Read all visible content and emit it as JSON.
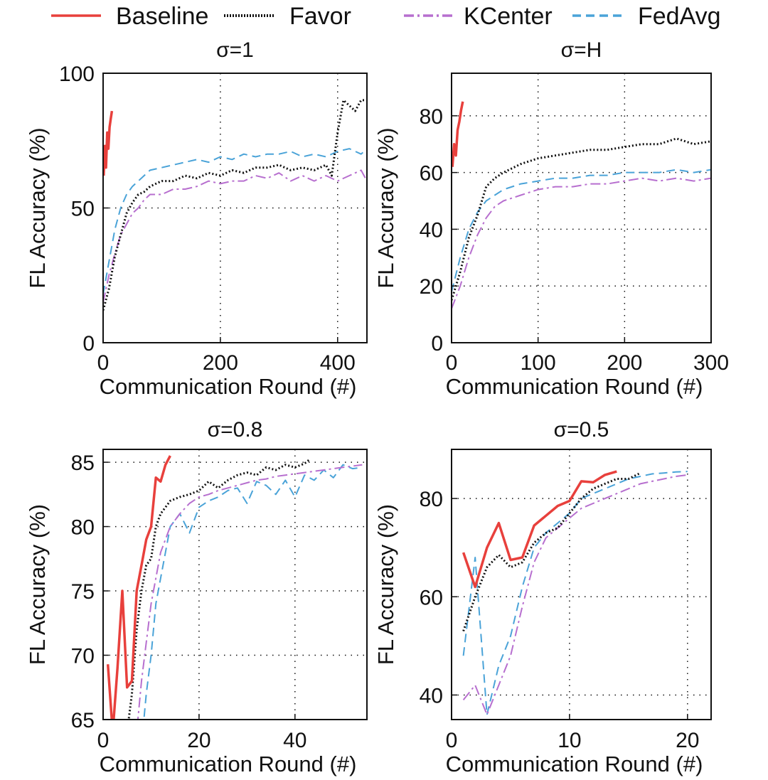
{
  "legend": {
    "entries": [
      {
        "name": "Baseline",
        "color": "#e8403c",
        "style": "solid"
      },
      {
        "name": "Favor",
        "color": "#111111",
        "style": "dotted"
      },
      {
        "name": "KCenter",
        "color": "#b76fcf",
        "style": "dashdot"
      },
      {
        "name": "FedAvg",
        "color": "#4aa3d8",
        "style": "dashed"
      }
    ]
  },
  "chart_data": [
    {
      "type": "line",
      "title": "σ=1",
      "xlabel": "Communication Round (#)",
      "ylabel": "FL Accuracy (%)",
      "xlim": [
        0,
        450
      ],
      "ylim": [
        0,
        100
      ],
      "xticks": [
        0,
        200,
        400
      ],
      "yticks": [
        0,
        50,
        100
      ],
      "xgrid": [
        200,
        400
      ],
      "ygrid": [
        50
      ],
      "series": [
        {
          "name": "Baseline",
          "x": [
            1,
            3,
            5,
            7,
            9,
            11,
            13,
            15
          ],
          "y": [
            62,
            73,
            65,
            78,
            72,
            80,
            83,
            86
          ]
        },
        {
          "name": "Favor",
          "x": [
            0,
            10,
            20,
            30,
            40,
            50,
            60,
            70,
            80,
            100,
            120,
            140,
            160,
            180,
            200,
            220,
            240,
            260,
            280,
            300,
            320,
            340,
            360,
            380,
            390,
            400,
            410,
            420,
            430,
            440,
            450
          ],
          "y": [
            12,
            20,
            32,
            40,
            48,
            52,
            55,
            56,
            58,
            60,
            60,
            62,
            61,
            63,
            62,
            64,
            63,
            65,
            65,
            66,
            64,
            65,
            64,
            66,
            62,
            78,
            90,
            88,
            86,
            90,
            90
          ]
        },
        {
          "name": "KCenter",
          "x": [
            0,
            10,
            20,
            30,
            40,
            50,
            60,
            70,
            80,
            100,
            120,
            140,
            160,
            180,
            200,
            220,
            240,
            260,
            280,
            300,
            320,
            340,
            360,
            380,
            400,
            420,
            440,
            450
          ],
          "y": [
            15,
            25,
            33,
            40,
            44,
            48,
            50,
            53,
            55,
            55,
            57,
            57,
            58,
            60,
            59,
            60,
            60,
            62,
            61,
            63,
            60,
            62,
            60,
            62,
            60,
            62,
            64,
            60
          ]
        },
        {
          "name": "FedAvg",
          "x": [
            0,
            10,
            20,
            30,
            40,
            50,
            60,
            70,
            80,
            100,
            120,
            140,
            160,
            180,
            200,
            220,
            240,
            260,
            280,
            300,
            320,
            340,
            360,
            380,
            400,
            420,
            440,
            450
          ],
          "y": [
            18,
            30,
            42,
            50,
            55,
            58,
            60,
            62,
            64,
            65,
            66,
            67,
            68,
            67,
            69,
            68,
            70,
            69,
            70,
            70,
            71,
            69,
            70,
            69,
            71,
            72,
            70,
            72
          ]
        }
      ]
    },
    {
      "type": "line",
      "title": "σ=H",
      "xlabel": "Communication Round (#)",
      "ylabel": "FL Accuracy (%)",
      "xlim": [
        0,
        300
      ],
      "ylim": [
        0,
        95
      ],
      "xticks": [
        0,
        100,
        200,
        300
      ],
      "yticks": [
        0,
        20,
        40,
        60,
        80
      ],
      "xgrid": [
        100,
        200
      ],
      "ygrid": [
        20,
        40,
        60,
        80
      ],
      "series": [
        {
          "name": "Baseline",
          "x": [
            1,
            3,
            5,
            7,
            9,
            11,
            13
          ],
          "y": [
            62,
            70,
            66,
            75,
            78,
            82,
            85
          ]
        },
        {
          "name": "Favor",
          "x": [
            0,
            10,
            20,
            30,
            40,
            50,
            60,
            80,
            100,
            120,
            140,
            160,
            180,
            200,
            220,
            240,
            260,
            280,
            300
          ],
          "y": [
            15,
            25,
            37,
            45,
            55,
            58,
            60,
            63,
            65,
            66,
            67,
            68,
            68,
            69,
            70,
            70,
            72,
            70,
            71
          ]
        },
        {
          "name": "KCenter",
          "x": [
            0,
            10,
            20,
            30,
            40,
            50,
            60,
            80,
            100,
            120,
            140,
            160,
            180,
            200,
            220,
            240,
            260,
            280,
            300
          ],
          "y": [
            12,
            20,
            30,
            38,
            44,
            48,
            50,
            52,
            54,
            55,
            55,
            56,
            56,
            57,
            58,
            57,
            58,
            57,
            58
          ]
        },
        {
          "name": "FedAvg",
          "x": [
            0,
            10,
            20,
            30,
            40,
            50,
            60,
            80,
            100,
            120,
            140,
            160,
            180,
            200,
            220,
            240,
            260,
            280,
            300
          ],
          "y": [
            18,
            30,
            40,
            46,
            50,
            52,
            54,
            56,
            57,
            58,
            58,
            59,
            59,
            60,
            60,
            60,
            61,
            60,
            61
          ]
        }
      ]
    },
    {
      "type": "line",
      "title": "σ=0.8",
      "xlabel": "Communication Round (#)",
      "ylabel": "FL Accuracy (%)",
      "xlim": [
        0,
        55
      ],
      "ylim": [
        65,
        86
      ],
      "xticks": [
        0,
        20,
        40
      ],
      "yticks": [
        65,
        70,
        75,
        80,
        85
      ],
      "xgrid": [
        20,
        40
      ],
      "ygrid": [
        70,
        75,
        80,
        85
      ],
      "series": [
        {
          "name": "Baseline",
          "x": [
            1,
            2,
            3,
            4,
            5,
            6,
            7,
            8,
            9,
            10,
            11,
            12,
            13,
            14
          ],
          "y": [
            69.3,
            64,
            69,
            75,
            67.5,
            68,
            75,
            77,
            79,
            80,
            83.8,
            83.5,
            84.8,
            85.5
          ]
        },
        {
          "name": "Favor",
          "x": [
            5,
            6,
            7,
            8,
            9,
            10,
            11,
            12,
            14,
            16,
            18,
            20,
            22,
            24,
            26,
            28,
            30,
            32,
            34,
            36,
            38,
            40,
            42,
            43
          ],
          "y": [
            64,
            67,
            72,
            75,
            77,
            77.5,
            80,
            81,
            82,
            82.3,
            82.5,
            82.8,
            83.5,
            83,
            83.6,
            84,
            84.2,
            84,
            84.6,
            84.4,
            84.8,
            84.6,
            84.9,
            85.2
          ]
        },
        {
          "name": "KCenter",
          "x": [
            6,
            7,
            8,
            9,
            10,
            11,
            12,
            14,
            16,
            18,
            20,
            22,
            24,
            26,
            28,
            30,
            32,
            34,
            36,
            38,
            40,
            42,
            44,
            46,
            48,
            50,
            52,
            54
          ],
          "y": [
            60,
            64,
            68,
            71,
            74,
            76,
            78,
            80,
            81,
            81.8,
            82.3,
            82.5,
            82.8,
            83,
            83.2,
            83.4,
            83.6,
            83.7,
            83.9,
            84,
            84.1,
            84.2,
            84.3,
            84.4,
            84.5,
            84.6,
            84.7,
            84.8
          ]
        },
        {
          "name": "FedAvg",
          "x": [
            7,
            8,
            9,
            10,
            11,
            12,
            13,
            14,
            16,
            18,
            20,
            22,
            24,
            26,
            28,
            30,
            32,
            34,
            36,
            38,
            40,
            42,
            44,
            46,
            48,
            50,
            52,
            54
          ],
          "y": [
            60,
            63,
            67,
            70,
            74,
            76,
            78,
            80,
            81,
            79.5,
            81.5,
            82,
            82.3,
            82.8,
            83,
            81.8,
            83.5,
            83.2,
            82.5,
            83.6,
            82.3,
            84,
            83.6,
            84.4,
            83.8,
            84.8,
            84.5,
            84.6
          ]
        }
      ]
    },
    {
      "type": "line",
      "title": "σ=0.5",
      "xlabel": "Communication Round (#)",
      "ylabel": "FL Accuracy (%)",
      "xlim": [
        0,
        22
      ],
      "ylim": [
        35,
        90
      ],
      "xticks": [
        0,
        10,
        20
      ],
      "yticks": [
        40,
        60,
        80
      ],
      "xgrid": [
        10,
        20
      ],
      "ygrid": [
        40,
        60,
        80
      ],
      "series": [
        {
          "name": "Baseline",
          "x": [
            1,
            2,
            3,
            4,
            5,
            6,
            7,
            8,
            9,
            10,
            11,
            12,
            13,
            14
          ],
          "y": [
            69,
            62,
            70,
            75,
            67.5,
            68,
            74.5,
            76.5,
            78.5,
            79.5,
            83.5,
            83.3,
            84.8,
            85.5
          ]
        },
        {
          "name": "Favor",
          "x": [
            1,
            2,
            3,
            4,
            5,
            6,
            7,
            8,
            9,
            10,
            11,
            12,
            13,
            14,
            15,
            16
          ],
          "y": [
            53,
            60,
            66,
            68.5,
            66,
            67,
            71,
            73,
            74,
            77,
            80,
            82,
            83,
            84,
            84,
            85.2
          ]
        },
        {
          "name": "KCenter",
          "x": [
            1,
            2,
            3,
            4,
            5,
            6,
            7,
            8,
            9,
            10,
            11,
            12,
            13,
            14,
            15,
            16,
            17,
            18,
            19,
            20
          ],
          "y": [
            39,
            42,
            36,
            42,
            48,
            58,
            67,
            72,
            74,
            76,
            78,
            79,
            80,
            81,
            82,
            83,
            83.5,
            84,
            84.5,
            84.8
          ]
        },
        {
          "name": "FedAvg",
          "x": [
            1,
            2,
            3,
            4,
            5,
            6,
            7,
            8,
            9,
            10,
            11,
            12,
            13,
            14,
            15,
            16,
            17,
            18,
            19,
            20
          ],
          "y": [
            48,
            68,
            36,
            46,
            52,
            62,
            70,
            73,
            75,
            77,
            80,
            81,
            82,
            83,
            84,
            84.5,
            85,
            85.2,
            85.4,
            85.5
          ]
        }
      ]
    }
  ]
}
